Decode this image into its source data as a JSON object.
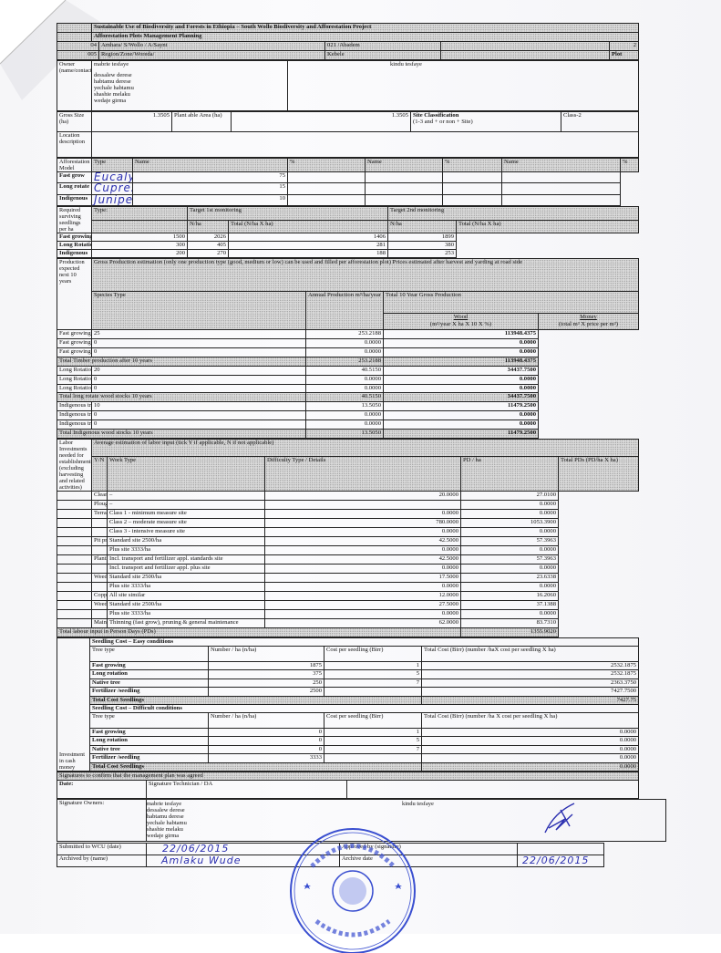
{
  "header": {
    "title": "Sustainable Use of Biodiversity and Forests in Ethiopia – South Wollo Biodiversity and Afforestation Project",
    "subtitle": "Afforestation Plots Management Planning",
    "code1": "04",
    "region_value": "Amhara/ S/Wollo / A/Saynt",
    "kebele_value": "021 /Abadem",
    "right_value": "2",
    "code2": "005",
    "region_label": "Region/Zone/Woreda/",
    "kebele_label": "Kebele",
    "plot_label": "Plot"
  },
  "owners": {
    "label": "Owner (name/contacts)",
    "left_names": [
      "mabrie tesfaye",
      "dessalew derese",
      "habtamu derese",
      "yechale habtamu",
      "shashie melaku",
      "wedaje girma"
    ],
    "right_name": "kindu tesfaye"
  },
  "site": {
    "gross_label": "Gross Size (ha)",
    "gross_value": "1.3505",
    "plantable_label": "Plant able Area (ha)",
    "plantable_value": "1.3505",
    "class_label": "Site Classification",
    "class_sub": "(1-3 and + or non + Site)",
    "class_value": "Class-2",
    "location_label": "Location description"
  },
  "model": {
    "label": "Afforestation Model",
    "headers": [
      "Type",
      "Name",
      "%",
      "Name",
      "%",
      "Name",
      "%"
    ],
    "rows": [
      {
        "type": "Fast grow",
        "name": "Eucalyptus globulus",
        "pct": "75"
      },
      {
        "type": "Long rotate",
        "name": "Cupressus lusitanica",
        "pct": "15"
      },
      {
        "type": "Indigenous",
        "name": "Juniperus procera",
        "pct": "10"
      }
    ]
  },
  "seedlings_req": {
    "label": "Required surviving seedlings per ha",
    "type_label": "Type:",
    "target1": "Target 1st monitoring",
    "target2": "Target 2nd monitoring",
    "nha": "N/ha",
    "total": "Total (N/ha X ha)",
    "rows": [
      {
        "type": "Fast growing",
        "n1": "1500",
        "t1": "2026",
        "n2": "1406",
        "t2": "1899"
      },
      {
        "type": "Long Rotation",
        "n1": "300",
        "t1": "405",
        "n2": "281",
        "t2": "380"
      },
      {
        "type": "Indigenous",
        "n1": "200",
        "t1": "270",
        "n2": "188",
        "t2": "253"
      }
    ]
  },
  "production": {
    "label": "Production expected next 10 years",
    "intro": "Gross Production estimation (only one production type (good, medium or low) can be used and filled per afforestation plot) Prices estimated after harvest and yarding at road side",
    "species_label": "Species Type",
    "annual_label": "Annual Production m³/ha/year",
    "total_label": "Total 10 Year Gross Production",
    "wood_label": "Wood",
    "wood_sub": "(m³/year X ha X 10 X %)",
    "money_label": "Money",
    "money_sub": "(total m³ X price per m³)",
    "rows": [
      {
        "species": "Fast growing (good)",
        "annual": "25",
        "wood": "253.2188",
        "money": "113948.4375",
        "total": false
      },
      {
        "species": "Fast growing (medium)",
        "annual": "0",
        "wood": "0.0000",
        "money": "0.0000",
        "total": false
      },
      {
        "species": "Fast growing (low)",
        "annual": "0",
        "wood": "0.0000",
        "money": "0.0000",
        "total": false
      },
      {
        "species": "Total Timber production after 10 years",
        "annual": "",
        "wood": "253.2188",
        "money": "113948.4375",
        "total": true
      },
      {
        "species": "Long Rotation (good)",
        "annual": "20",
        "wood": "40.5150",
        "money": "34437.7500",
        "total": false
      },
      {
        "species": "Long Rotation (medium)",
        "annual": "0",
        "wood": "0.0000",
        "money": "0.0000",
        "total": false
      },
      {
        "species": "Long Rotation (low)",
        "annual": "0",
        "wood": "0.0000",
        "money": "0.0000",
        "total": false
      },
      {
        "species": "Total long rotate wood stocks 10 years",
        "annual": "",
        "wood": "40.5150",
        "money": "34437.7500",
        "total": true
      },
      {
        "species": "Indigenous trees (good)",
        "annual": "10",
        "wood": "13.5050",
        "money": "11479.2500",
        "total": false
      },
      {
        "species": "Indigenous trees (medium)",
        "annual": "0",
        "wood": "0.0000",
        "money": "0.0000",
        "total": false
      },
      {
        "species": "Indigenous trees (low)",
        "annual": "0",
        "wood": "0.0000",
        "money": "0.0000",
        "total": false
      },
      {
        "species": "Total Indigenous wood stocks 10 years",
        "annual": "",
        "wood": "13.5050",
        "money": "11479.2500",
        "total": true
      }
    ]
  },
  "labor": {
    "label": "Labor Investments needed for establishment (excluding harvesting and related activities)",
    "intro": "Average estimation of labor input (tick Y if applicable, N if not applicable)",
    "headers": [
      "Y/N",
      "Work Type",
      "Difficulty Type / Details",
      "PD / ha",
      "Total PDs (PD/ha X ha)"
    ],
    "rows": [
      {
        "work": "Clearing",
        "detail": "–",
        "pd": "20.0000",
        "total": "27.0100"
      },
      {
        "work": "Ploughing",
        "detail": "–",
        "pd": "",
        "total": "0.0000"
      },
      {
        "work": "Terracing, Water harvesting",
        "detail": "Class 1 - minimum measure site",
        "pd": "0.0000",
        "total": "0.0000"
      },
      {
        "work": "",
        "detail": "Class 2 – moderate measure site",
        "pd": "780.0000",
        "total": "1053.3900"
      },
      {
        "work": "",
        "detail": "Class 3 - intensive measure site",
        "pd": "0.0000",
        "total": "0.0000"
      },
      {
        "work": "Pit preparation",
        "detail": "Standard site 2500/ha",
        "pd": "42.5000",
        "total": "57.3963"
      },
      {
        "work": "",
        "detail": "Plus site 3333/ha",
        "pd": "0.0000",
        "total": "0.0000"
      },
      {
        "work": "Planting",
        "detail": "Incl. transport and fertilizer appl. standards site",
        "pd": "42.5000",
        "total": "57.3963"
      },
      {
        "work": "",
        "detail": "Incl. transport and fertilizer appl. plus site",
        "pd": "0.0000",
        "total": "0.0000"
      },
      {
        "work": "Weeding year 1",
        "detail": "Standard site 2500/ha",
        "pd": "17.5000",
        "total": "23.6338"
      },
      {
        "work": "",
        "detail": "Plus site 3333/ha",
        "pd": "0.0000",
        "total": "0.0000"
      },
      {
        "work": "Coppice management",
        "detail": "All site similar",
        "pd": "12.0000",
        "total": "16.2060"
      },
      {
        "work": "Weeding year 2-5",
        "detail": "Standard site 2500/ha",
        "pd": "27.5000",
        "total": "37.1388"
      },
      {
        "work": "",
        "detail": "Plus site 3333/ha",
        "pd": "0.0000",
        "total": "0.0000"
      },
      {
        "work": "Maintenance",
        "detail": "Thinning (fast grow), pruning & general maintenance",
        "pd": "62.0000",
        "total": "83.7310"
      }
    ],
    "total_label": "Total labour input in Person Days (PDs)",
    "total_value": "1355.9020"
  },
  "investment": {
    "label": "Investment in cash money",
    "easy": {
      "title": "Seedling Cost – Easy conditions",
      "headers": [
        "Tree type",
        "Number / ha (n/ha)",
        "Cost per seedling (Birr)",
        "Total Cost (Birr) (number /haX cost per seedling X ha)"
      ],
      "rows": [
        {
          "type": "Fast growing",
          "num": "1875",
          "cost": "1",
          "total": "2532.1875"
        },
        {
          "type": "Long rotation",
          "num": "375",
          "cost": "5",
          "total": "2532.1875"
        },
        {
          "type": "Native tree",
          "num": "250",
          "cost": "7",
          "total": "2363.3750"
        },
        {
          "type": "Fertilizer /seedling",
          "num": "2500",
          "cost": "",
          "total": "7427.7500"
        }
      ],
      "total_label": "Total Cost Seedlings",
      "total_value": "7427.75"
    },
    "difficult": {
      "title": "Seedling Cost – Difficult conditions",
      "headers": [
        "Tree type",
        "Number / ha (n/ha)",
        "Cost per seedling (Birr)",
        "Total Cost (Birr) (number /ha X cost per seedling X ha)"
      ],
      "rows": [
        {
          "type": "Fast growing",
          "num": "0",
          "cost": "1",
          "total": "0.0000"
        },
        {
          "type": "Long rotation",
          "num": "0",
          "cost": "5",
          "total": "0.0000"
        },
        {
          "type": "Native tree",
          "num": "0",
          "cost": "7",
          "total": "0.0000"
        },
        {
          "type": "Fertilizer /seedling",
          "num": "3333",
          "cost": "",
          "total": "0.0000"
        }
      ],
      "total_label": "Total Cost Seedlings",
      "total_value": "0.0000"
    }
  },
  "signatures": {
    "title": "Signatures to confirm that the management plan was agreed",
    "date_label": "Date:",
    "technician_label": "Signature Technician / DA",
    "owners_label": "Signature Owners:",
    "owners_left": [
      "mabrie tesfaye",
      "dessalew derese",
      "habtamu derese",
      "yechale habtamu",
      "shashie melaku",
      "wedaje girma"
    ],
    "owners_right": "kindu tesfaye",
    "submitted_label": "Submitted to WCU (date)",
    "submitted_value": "22/06/2015",
    "approved_label": "Approved by (signature)",
    "archived_label": "Archived by (name)",
    "archived_value": "Amlaku Wude",
    "archive_date_label": "Archive date",
    "archive_date_value": "22/06/2015"
  },
  "colors": {
    "ink_blue": "#2b2fb0",
    "stamp_blue": "#3a4fd0",
    "hatch": "#d9d9d9"
  }
}
